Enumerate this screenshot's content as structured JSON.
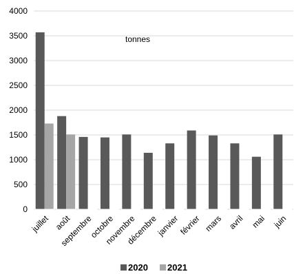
{
  "chart_data": {
    "type": "bar",
    "unit_label": "tonnes",
    "categories": [
      "juillet",
      "août",
      "septembre",
      "octobre",
      "novembre",
      "décembre",
      "janvier",
      "février",
      "mars",
      "avril",
      "mai",
      "juin"
    ],
    "series": [
      {
        "name": "2020",
        "color": "#595959",
        "values": [
          3570,
          1880,
          1460,
          1450,
          1510,
          1140,
          1330,
          1590,
          1490,
          1330,
          1060,
          1510
        ]
      },
      {
        "name": "2021",
        "color": "#a6a6a6",
        "values": [
          1730,
          1510,
          null,
          null,
          null,
          null,
          null,
          null,
          null,
          null,
          null,
          null
        ]
      }
    ],
    "ylim": [
      0,
      4000
    ],
    "yticks": [
      0,
      500,
      1000,
      1500,
      2000,
      2500,
      3000,
      3500,
      4000
    ],
    "grid": true,
    "legend_position": "bottom",
    "title": "",
    "xlabel": "",
    "ylabel": ""
  }
}
